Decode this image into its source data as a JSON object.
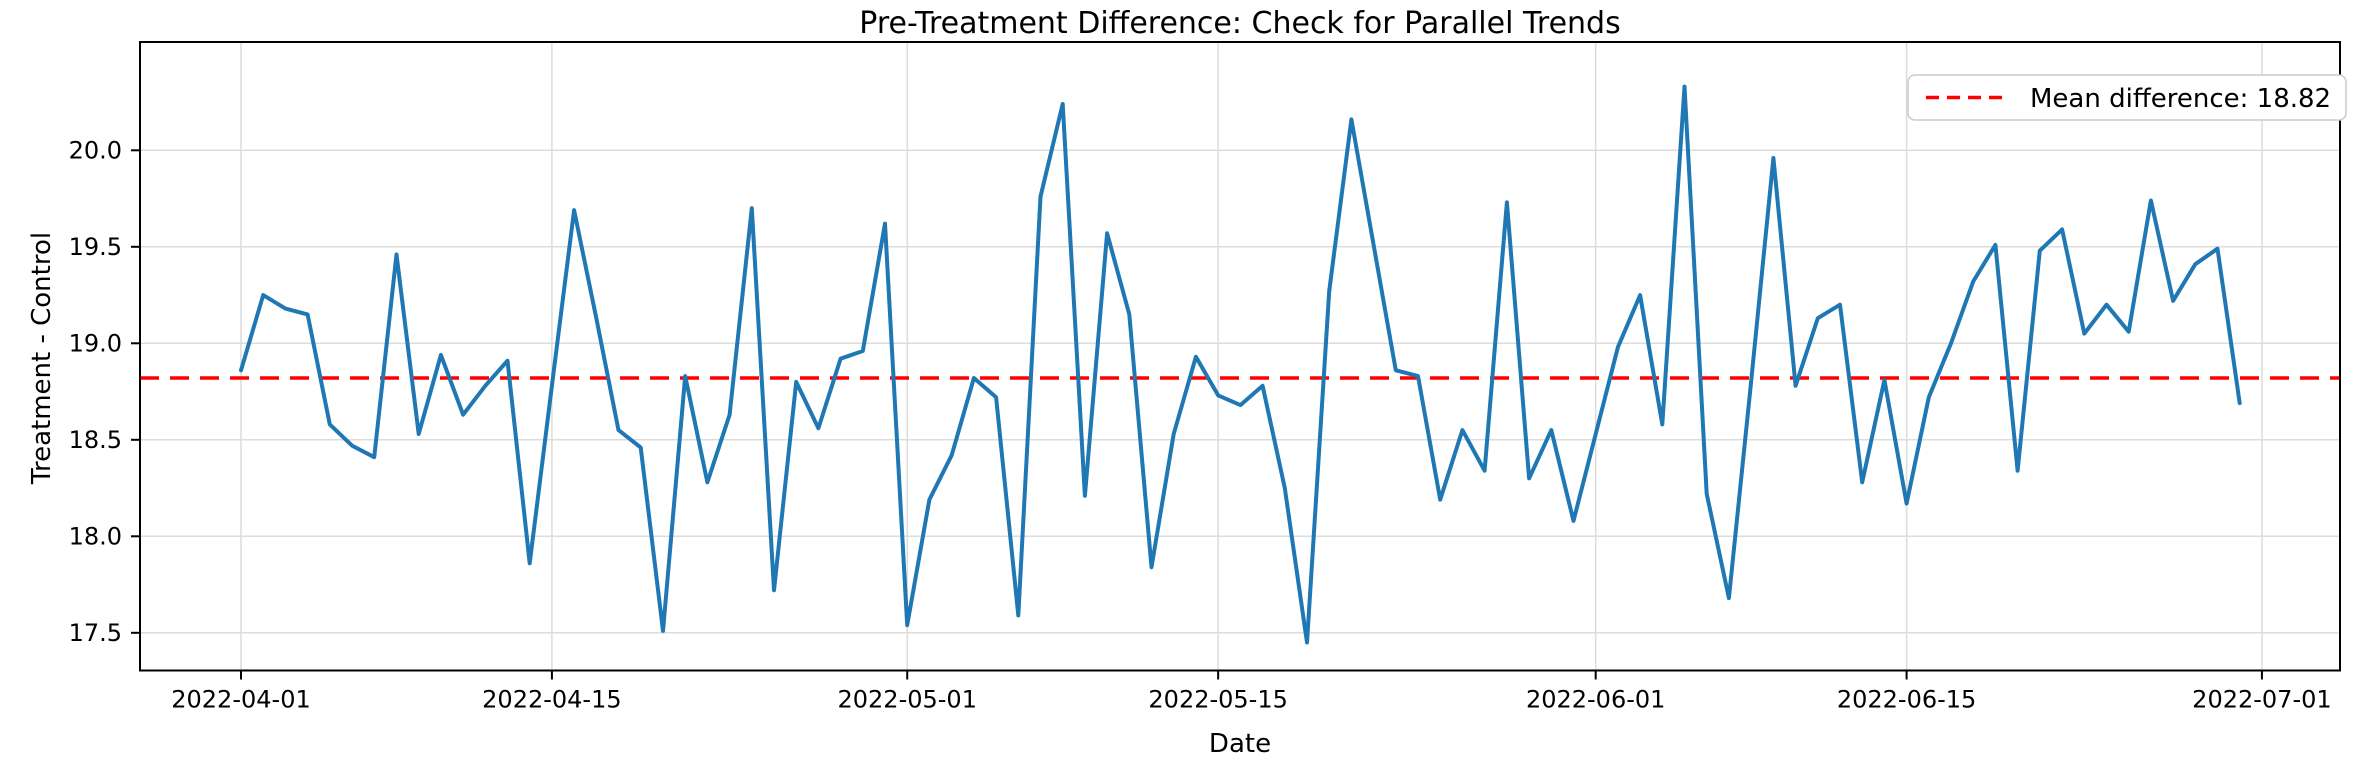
{
  "figure": {
    "background": "#ffffff",
    "text_color": "#000000",
    "grid_color": "#dcdcdc",
    "spine_color": "#000000"
  },
  "chart_data": {
    "type": "line",
    "title": "Pre-Treatment Difference: Check for Parallel Trends",
    "xlabel": "Date",
    "ylabel": "Treatment - Control",
    "grid": true,
    "legend_position": "upper right",
    "ylim": [
      17.31,
      20.56
    ],
    "y_ticks": [
      17.5,
      18.0,
      18.5,
      19.0,
      19.5,
      20.0
    ],
    "x_ticks": [
      {
        "day_index": 0,
        "label": "2022-04-01"
      },
      {
        "day_index": 14,
        "label": "2022-04-15"
      },
      {
        "day_index": 30,
        "label": "2022-05-01"
      },
      {
        "day_index": 44,
        "label": "2022-05-15"
      },
      {
        "day_index": 61,
        "label": "2022-06-01"
      },
      {
        "day_index": 75,
        "label": "2022-06-15"
      },
      {
        "day_index": 91,
        "label": "2022-07-01"
      }
    ],
    "mean_line": {
      "value": 18.82,
      "color": "#ff0000",
      "dashed": true,
      "legend_label": "Mean difference: 18.82"
    },
    "series": [
      {
        "name": "treatment-minus-control",
        "color": "#1f77b4",
        "dates": [
          "2022-04-01",
          "2022-04-02",
          "2022-04-03",
          "2022-04-04",
          "2022-04-05",
          "2022-04-06",
          "2022-04-07",
          "2022-04-08",
          "2022-04-09",
          "2022-04-10",
          "2022-04-11",
          "2022-04-12",
          "2022-04-13",
          "2022-04-14",
          "2022-04-15",
          "2022-04-16",
          "2022-04-17",
          "2022-04-18",
          "2022-04-19",
          "2022-04-20",
          "2022-04-21",
          "2022-04-22",
          "2022-04-23",
          "2022-04-24",
          "2022-04-25",
          "2022-04-26",
          "2022-04-27",
          "2022-04-28",
          "2022-04-29",
          "2022-04-30",
          "2022-05-01",
          "2022-05-02",
          "2022-05-03",
          "2022-05-04",
          "2022-05-05",
          "2022-05-06",
          "2022-05-07",
          "2022-05-08",
          "2022-05-09",
          "2022-05-10",
          "2022-05-11",
          "2022-05-12",
          "2022-05-13",
          "2022-05-14",
          "2022-05-15",
          "2022-05-16",
          "2022-05-17",
          "2022-05-18",
          "2022-05-19",
          "2022-05-20",
          "2022-05-21",
          "2022-05-22",
          "2022-05-23",
          "2022-05-24",
          "2022-05-25",
          "2022-05-26",
          "2022-05-27",
          "2022-05-28",
          "2022-05-29",
          "2022-05-30",
          "2022-05-31",
          "2022-06-01",
          "2022-06-02",
          "2022-06-03",
          "2022-06-04",
          "2022-06-05",
          "2022-06-06",
          "2022-06-07",
          "2022-06-08",
          "2022-06-09",
          "2022-06-10",
          "2022-06-11",
          "2022-06-12",
          "2022-06-13",
          "2022-06-14",
          "2022-06-15",
          "2022-06-16",
          "2022-06-17",
          "2022-06-18",
          "2022-06-19",
          "2022-06-20",
          "2022-06-21",
          "2022-06-22",
          "2022-06-23",
          "2022-06-24",
          "2022-06-25",
          "2022-06-26",
          "2022-06-27",
          "2022-06-28",
          "2022-06-29",
          "2022-06-30"
        ],
        "values": [
          18.86,
          19.25,
          19.18,
          19.15,
          18.58,
          18.47,
          18.41,
          19.46,
          18.53,
          18.94,
          18.63,
          18.78,
          18.91,
          17.86,
          18.78,
          19.69,
          19.13,
          18.55,
          18.46,
          17.51,
          18.83,
          18.28,
          18.63,
          19.7,
          17.72,
          18.8,
          18.56,
          18.92,
          18.96,
          19.62,
          17.54,
          18.19,
          18.42,
          18.82,
          18.72,
          17.59,
          19.76,
          20.24,
          18.21,
          19.57,
          19.15,
          17.84,
          18.53,
          18.93,
          18.73,
          18.68,
          18.78,
          18.25,
          17.45,
          19.27,
          20.16,
          19.51,
          18.86,
          18.83,
          18.19,
          18.55,
          18.34,
          19.73,
          18.3,
          18.55,
          18.08,
          18.53,
          18.98,
          19.25,
          18.58,
          20.33,
          18.22,
          17.68,
          18.8,
          19.96,
          18.78,
          19.13,
          19.2,
          18.28,
          18.81,
          18.17,
          18.72,
          19.0,
          19.32,
          19.51,
          18.34,
          19.48,
          19.59,
          19.05,
          19.2,
          19.06,
          19.74,
          19.22,
          19.41,
          19.49,
          18.69
        ]
      }
    ]
  }
}
